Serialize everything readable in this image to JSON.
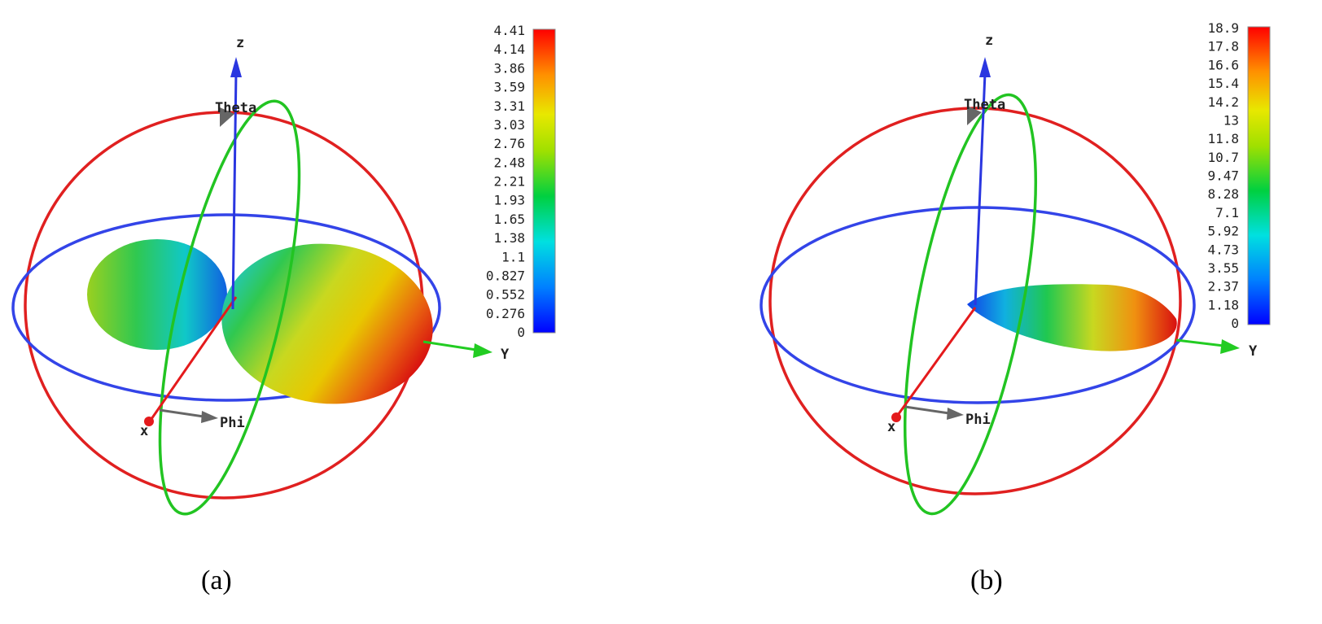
{
  "panels": [
    {
      "caption": "(a)",
      "axes": {
        "z": "z",
        "y": "Y",
        "x": "x",
        "theta": "Theta",
        "phi": "Phi"
      },
      "colorbar": {
        "ticks": [
          "4.41",
          "4.14",
          "3.86",
          "3.59",
          "3.31",
          "3.03",
          "2.76",
          "2.48",
          "2.21",
          "1.93",
          "1.65",
          "1.38",
          "1.1",
          "0.827",
          "0.552",
          "0.276",
          "0"
        ],
        "min": 0,
        "max": 4.41
      },
      "lobes": [
        {
          "name": "left-lobe",
          "peak_fraction": 0.45
        },
        {
          "name": "right-lobe",
          "peak_fraction": 1.0
        }
      ]
    },
    {
      "caption": "(b)",
      "axes": {
        "z": "z",
        "y": "Y",
        "x": "x",
        "theta": "Theta",
        "phi": "Phi"
      },
      "colorbar": {
        "ticks": [
          "18.9",
          "17.8",
          "16.6",
          "15.4",
          "14.2",
          "13",
          "11.8",
          "10.7",
          "9.47",
          "8.28",
          "7.1",
          "5.92",
          "4.73",
          "3.55",
          "2.37",
          "1.18",
          "0"
        ],
        "min": 0,
        "max": 18.9
      },
      "lobes": [
        {
          "name": "main-lobe",
          "peak_fraction": 1.0
        }
      ]
    }
  ],
  "colors": {
    "x_axis": "#e41a1c",
    "y_axis": "#22cc22",
    "z_axis": "#2a36e0",
    "ring_vertical_red": "#e02020",
    "ring_vertical_green": "#22c422",
    "ring_horizontal_blue": "#3344e8",
    "marker_gray": "#666666"
  }
}
